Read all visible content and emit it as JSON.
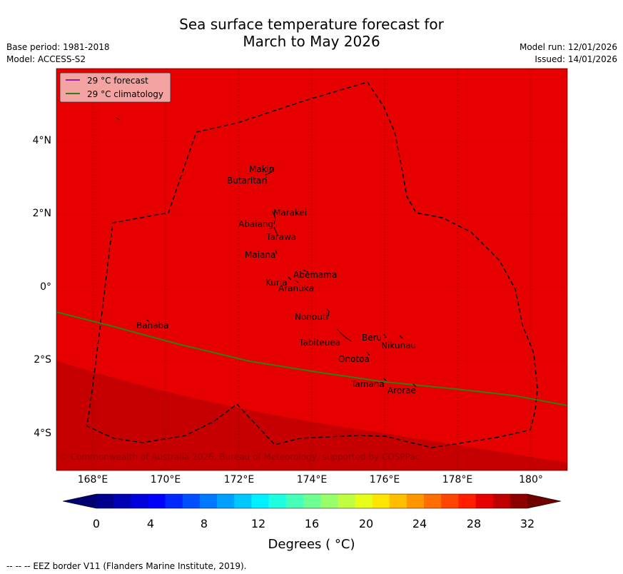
{
  "title": [
    "Sea surface temperature forecast for",
    "March to May 2026"
  ],
  "base_period": "Base period: 1981-2018",
  "model": "Model: ACCESS-S2",
  "model_run": "Model run: 12/01/2026",
  "issued": "Issued: 14/01/2026",
  "legend": {
    "forecast": {
      "label": "29 °C  forecast",
      "color": "#9b1fa0"
    },
    "climatology": {
      "label": "29 °C  climatology",
      "color": "#2e7d1a"
    }
  },
  "lat_ticks": [
    "4°N",
    "2°N",
    "0°",
    "2°S",
    "4°S"
  ],
  "lon_ticks": [
    "168°E",
    "170°E",
    "172°E",
    "174°E",
    "176°E",
    "178°E",
    "180°"
  ],
  "islands": [
    "Makin",
    "Butaritari",
    "Marakei",
    "Abaiang",
    "Tarawa",
    "Maiana",
    "Abemama",
    "Kuria",
    "Aranuka",
    "Nonouti",
    "Banaba",
    "Beru",
    "Nikunau",
    "Tabiteuea",
    "Onotoa",
    "Tamana",
    "Arorae"
  ],
  "copyright": "© Commonwealth of Australia 2026, Bureau of Meteorology, supported by COSPPac",
  "colorbar": {
    "tick_labels": [
      "0",
      "4",
      "8",
      "12",
      "16",
      "20",
      "24",
      "28",
      "32"
    ],
    "title": "Degrees ( °C)",
    "colors": [
      "#00008c",
      "#0000b4",
      "#0000dc",
      "#0000ff",
      "#0028ff",
      "#0050ff",
      "#0078ff",
      "#00a0ff",
      "#00c8ff",
      "#00f0ff",
      "#1effe1",
      "#46ffb9",
      "#6eff91",
      "#96ff69",
      "#beff41",
      "#e6ff19",
      "#ffe600",
      "#ffbe00",
      "#ff9600",
      "#ff6e00",
      "#ff4600",
      "#ff1e00",
      "#e60000",
      "#be0000",
      "#8c0000"
    ],
    "under_color": "#000070",
    "over_color": "#6e0000"
  },
  "field_colors": {
    "main": "#e60000",
    "warm": "#be0000",
    "lower_bound_label": "30"
  },
  "footer": "--  --  -- EEZ border V11 (Flanders Marine Institute, 2019)."
}
